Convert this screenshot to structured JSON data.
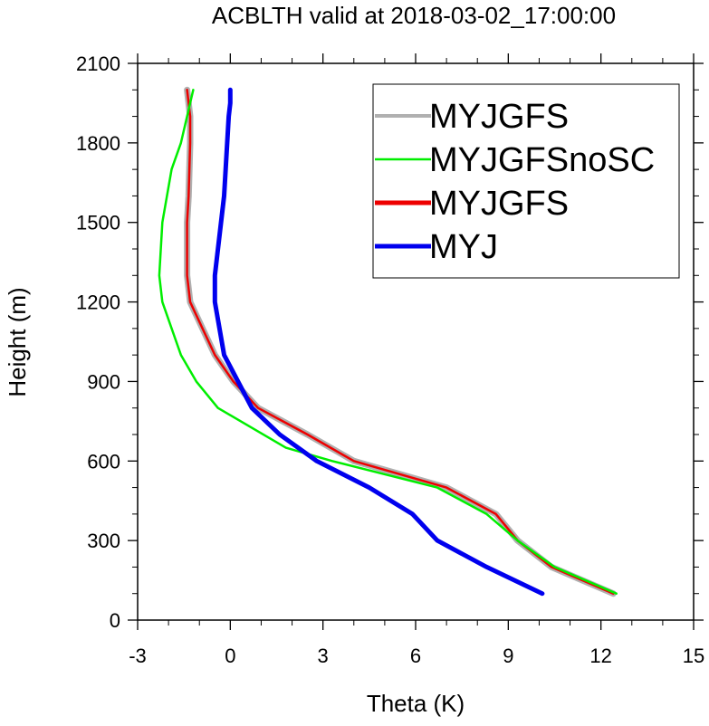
{
  "chart_data": {
    "type": "line",
    "title": "ACBLTH valid at 2018-03-02_17:00:00",
    "xlabel": "Theta (K)",
    "ylabel": "Height (m)",
    "xlim": [
      -3,
      15
    ],
    "ylim": [
      0,
      2100
    ],
    "xticks": [
      -3,
      0,
      3,
      6,
      9,
      12,
      15
    ],
    "yticks": [
      0,
      300,
      600,
      900,
      1200,
      1500,
      1800,
      2100
    ],
    "xtick_labels": [
      "-3",
      "0",
      "3",
      "6",
      "9",
      "12",
      "15"
    ],
    "ytick_labels": [
      "0",
      "300",
      "600",
      "900",
      "1200",
      "1500",
      "1800",
      "2100"
    ],
    "grid": false,
    "legend_position": "top-right",
    "series": [
      {
        "name": "MYJGFS",
        "color": "#b0b0b0",
        "x": [
          12.4,
          10.4,
          9.3,
          8.6,
          7.0,
          5.5,
          4.0,
          2.5,
          0.9,
          0.1,
          -0.5,
          -1.3,
          -1.4,
          -1.4,
          -1.35,
          -1.3,
          -1.3,
          -1.4
        ],
        "y": [
          100,
          200,
          300,
          400,
          500,
          550,
          600,
          700,
          800,
          900,
          1000,
          1200,
          1300,
          1500,
          1600,
          1800,
          1900,
          2000
        ]
      },
      {
        "name": "MYJGFSnoSC",
        "color": "#00ee00",
        "x": [
          12.5,
          10.5,
          9.3,
          8.3,
          6.7,
          5.0,
          3.3,
          1.8,
          -0.4,
          -1.1,
          -1.6,
          -2.2,
          -2.3,
          -2.2,
          -1.9,
          -1.6,
          -1.3,
          -1.2
        ],
        "y": [
          100,
          200,
          300,
          400,
          500,
          550,
          600,
          650,
          800,
          900,
          1000,
          1200,
          1300,
          1500,
          1700,
          1800,
          1950,
          2000
        ]
      },
      {
        "name": "MYJGFS",
        "color": "#ee0000",
        "x": [
          12.4,
          10.4,
          9.3,
          8.6,
          7.0,
          5.5,
          4.0,
          2.5,
          0.9,
          0.1,
          -0.5,
          -1.3,
          -1.4,
          -1.4,
          -1.35,
          -1.3,
          -1.3,
          -1.4
        ],
        "y": [
          100,
          200,
          300,
          400,
          500,
          550,
          600,
          700,
          800,
          900,
          1000,
          1200,
          1300,
          1500,
          1600,
          1800,
          1900,
          2000
        ]
      },
      {
        "name": "MYJ",
        "color": "#0000ee",
        "x": [
          10.1,
          8.3,
          6.7,
          5.9,
          4.5,
          2.8,
          1.6,
          0.7,
          -0.2,
          -0.5,
          -0.5,
          -0.4,
          -0.2,
          -0.15,
          -0.1,
          -0.05,
          0.0,
          0.0
        ],
        "y": [
          100,
          200,
          300,
          400,
          500,
          600,
          700,
          800,
          1000,
          1200,
          1300,
          1400,
          1600,
          1700,
          1800,
          1900,
          1950,
          2000
        ]
      }
    ]
  }
}
